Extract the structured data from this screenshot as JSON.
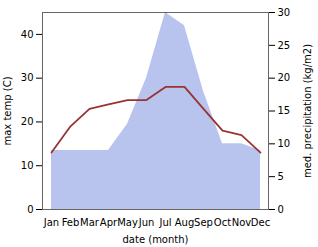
{
  "chart_data": {
    "type": "line",
    "categories": [
      "Jan",
      "Feb",
      "Mar",
      "Apr",
      "May",
      "Jun",
      "Jul",
      "Aug",
      "Sep",
      "Oct",
      "Nov",
      "Dec"
    ],
    "series": [
      {
        "type": "area",
        "axis": "y2",
        "color": "#b8c4ee",
        "values": [
          9,
          9,
          9,
          9,
          13,
          20,
          30,
          28,
          18,
          10,
          10,
          9
        ]
      },
      {
        "type": "line",
        "color": "#993333",
        "values": [
          13,
          19,
          23,
          24,
          25,
          25,
          28,
          28,
          23,
          18,
          17,
          13
        ]
      }
    ],
    "xlabel": "date (month)",
    "ylabel": "max temp (C)",
    "y2label": "med. precipitation (kg/m2)",
    "ylim": [
      0,
      45
    ],
    "yticks": [
      0,
      10,
      20,
      30,
      40
    ],
    "y2lim": [
      0,
      30
    ],
    "y2ticks": [
      0,
      5,
      10,
      15,
      20,
      25,
      30
    ],
    "grid": false
  }
}
